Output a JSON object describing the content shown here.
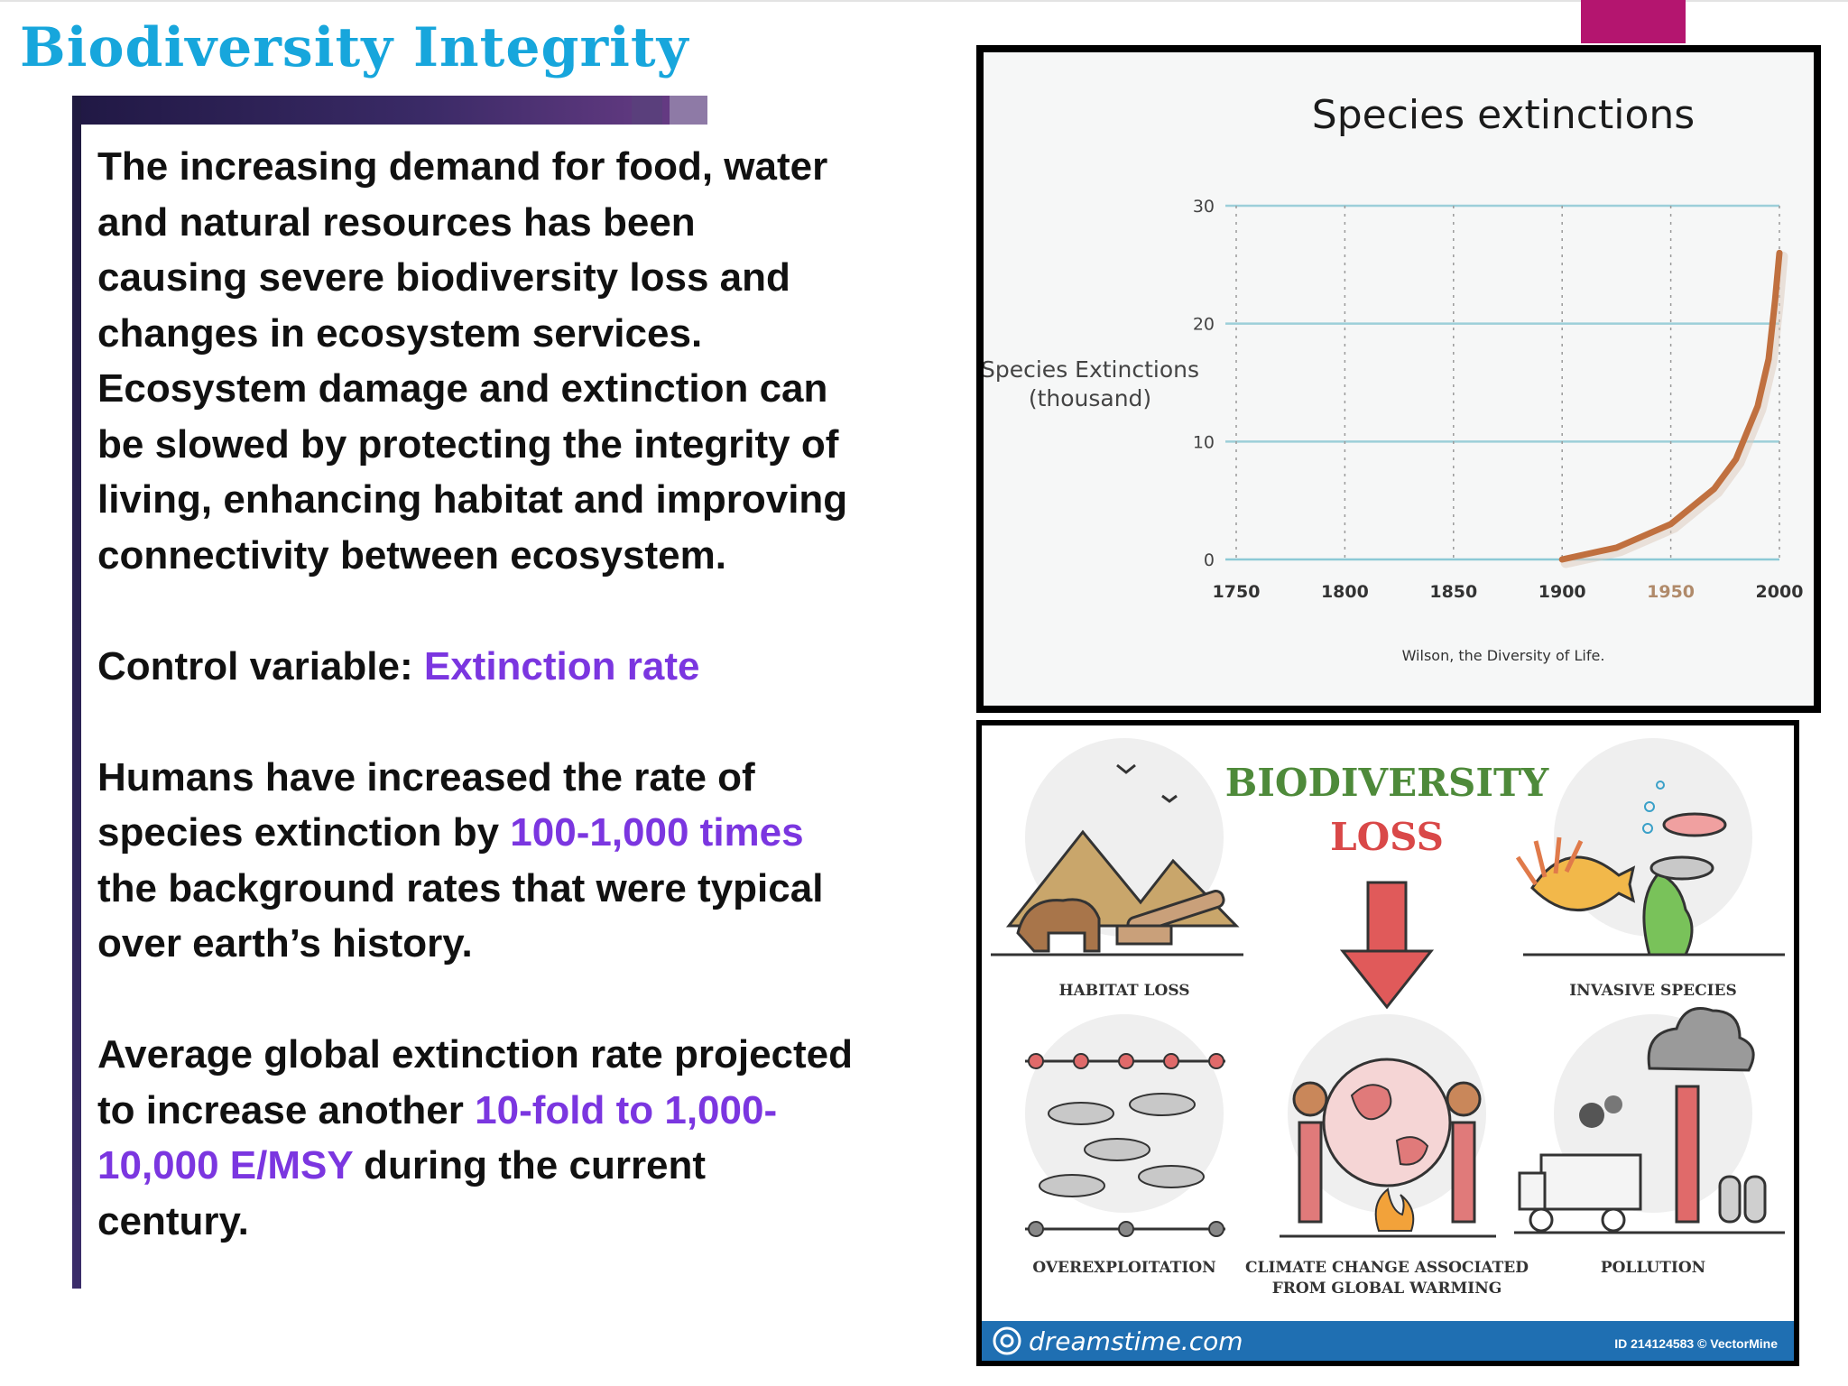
{
  "slide": {
    "title": "Biodiversity Integrity",
    "paragraphs": [
      [
        {
          "text": "The increasing demand for food, water and natural resources has been causing severe biodiversity loss and changes in ecosystem services. Ecosystem damage and extinction can be slowed by protecting the integrity of living, enhancing habitat and improving connectivity between ecosystem."
        }
      ],
      [
        {
          "text": "Control variable: "
        },
        {
          "text": "Extinction rate",
          "highlight": true
        }
      ],
      [
        {
          "text": "Humans have increased the rate of species extinction by "
        },
        {
          "text": "100-1,000 times",
          "highlight": true
        },
        {
          "text": " the background rates that were typical over earth’s history."
        }
      ],
      [
        {
          "text": "Average global extinction rate projected to increase another "
        },
        {
          "text": "10-fold to 1,000-10,000 E/MSY",
          "highlight": true
        },
        {
          "text": " during the current century."
        }
      ]
    ],
    "colors": {
      "title": "#17a6dc",
      "highlight": "#7b36e0",
      "accent": "#b4156f",
      "band": "#2d2457"
    }
  },
  "chart_data": {
    "type": "line",
    "title": "Species extinctions",
    "ylabel": [
      "Species Extinctions",
      "(thousand)"
    ],
    "xlabel": "",
    "source": "Wilson, the Diversity of Life.",
    "xlim": [
      1750,
      2000
    ],
    "ylim": [
      0,
      30
    ],
    "x_ticks": [
      "1750",
      "1800",
      "1850",
      "1900",
      "1950",
      "2000"
    ],
    "y_ticks": [
      "0",
      "10",
      "20",
      "30"
    ],
    "grid": true,
    "series": [
      {
        "color": "#c0703f",
        "points": [
          [
            1900,
            0
          ],
          [
            1925,
            1
          ],
          [
            1950,
            3
          ],
          [
            1970,
            6
          ],
          [
            1980,
            8.5
          ],
          [
            1990,
            13
          ],
          [
            1995,
            17
          ],
          [
            1998,
            22
          ],
          [
            2000,
            26
          ]
        ]
      }
    ]
  },
  "infographic": {
    "title_line1": "BIODIVERSITY",
    "title_line2": "LOSS",
    "items": [
      "HABITAT LOSS",
      "INVASIVE SPECIES",
      "OVEREXPLOITATION",
      "CLIMATE CHANGE ASSOCIATED",
      "FROM GLOBAL WARMING",
      "POLLUTION"
    ],
    "footer_brand": "dreamstime.com",
    "footer_id": "ID 214124583 © VectorMine",
    "colors": {
      "title_green": "#4e8a3a",
      "title_red": "#d94848",
      "footer": "#1f6fb2"
    }
  }
}
